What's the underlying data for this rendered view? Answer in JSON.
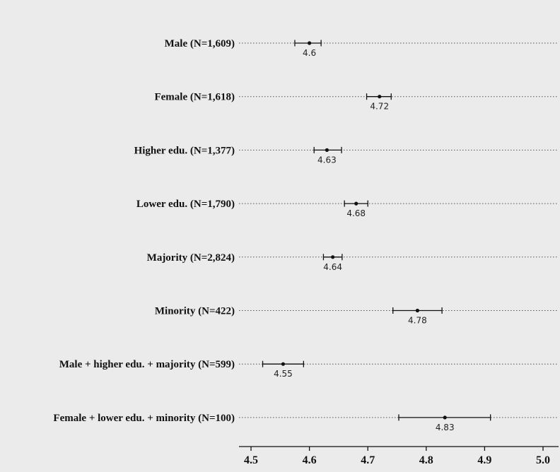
{
  "chart_data": {
    "type": "dot-with-error-bars",
    "orientation": "horizontal",
    "xlim": [
      4.47,
      5.02
    ],
    "x_ticks": [
      "4.5",
      "4.6",
      "4.7",
      "4.8",
      "4.9",
      "5.0"
    ],
    "rows": [
      {
        "label": "Male (N=1,609)",
        "value": 4.6,
        "value_label": "4.6",
        "ci": [
          4.575,
          4.62
        ]
      },
      {
        "label": "Female (N=1,618)",
        "value": 4.72,
        "value_label": "4.72",
        "ci": [
          4.698,
          4.74
        ]
      },
      {
        "label": "Higher edu. (N=1,377)",
        "value": 4.63,
        "value_label": "4.63",
        "ci": [
          4.608,
          4.655
        ]
      },
      {
        "label": "Lower edu. (N=1,790)",
        "value": 4.68,
        "value_label": "4.68",
        "ci": [
          4.66,
          4.7
        ]
      },
      {
        "label": "Majority (N=2,824)",
        "value": 4.64,
        "value_label": "4.64",
        "ci": [
          4.624,
          4.656
        ]
      },
      {
        "label": "Minority (N=422)",
        "value": 4.785,
        "value_label": "4.78",
        "ci": [
          4.743,
          4.827
        ]
      },
      {
        "label": "Male + higher edu. + majority (N=599)",
        "value": 4.555,
        "value_label": "4.55",
        "ci": [
          4.52,
          4.59
        ]
      },
      {
        "label": "Female + lower edu. + minority (N=100)",
        "value": 4.832,
        "value_label": "4.83",
        "ci": [
          4.753,
          4.91
        ]
      }
    ]
  }
}
